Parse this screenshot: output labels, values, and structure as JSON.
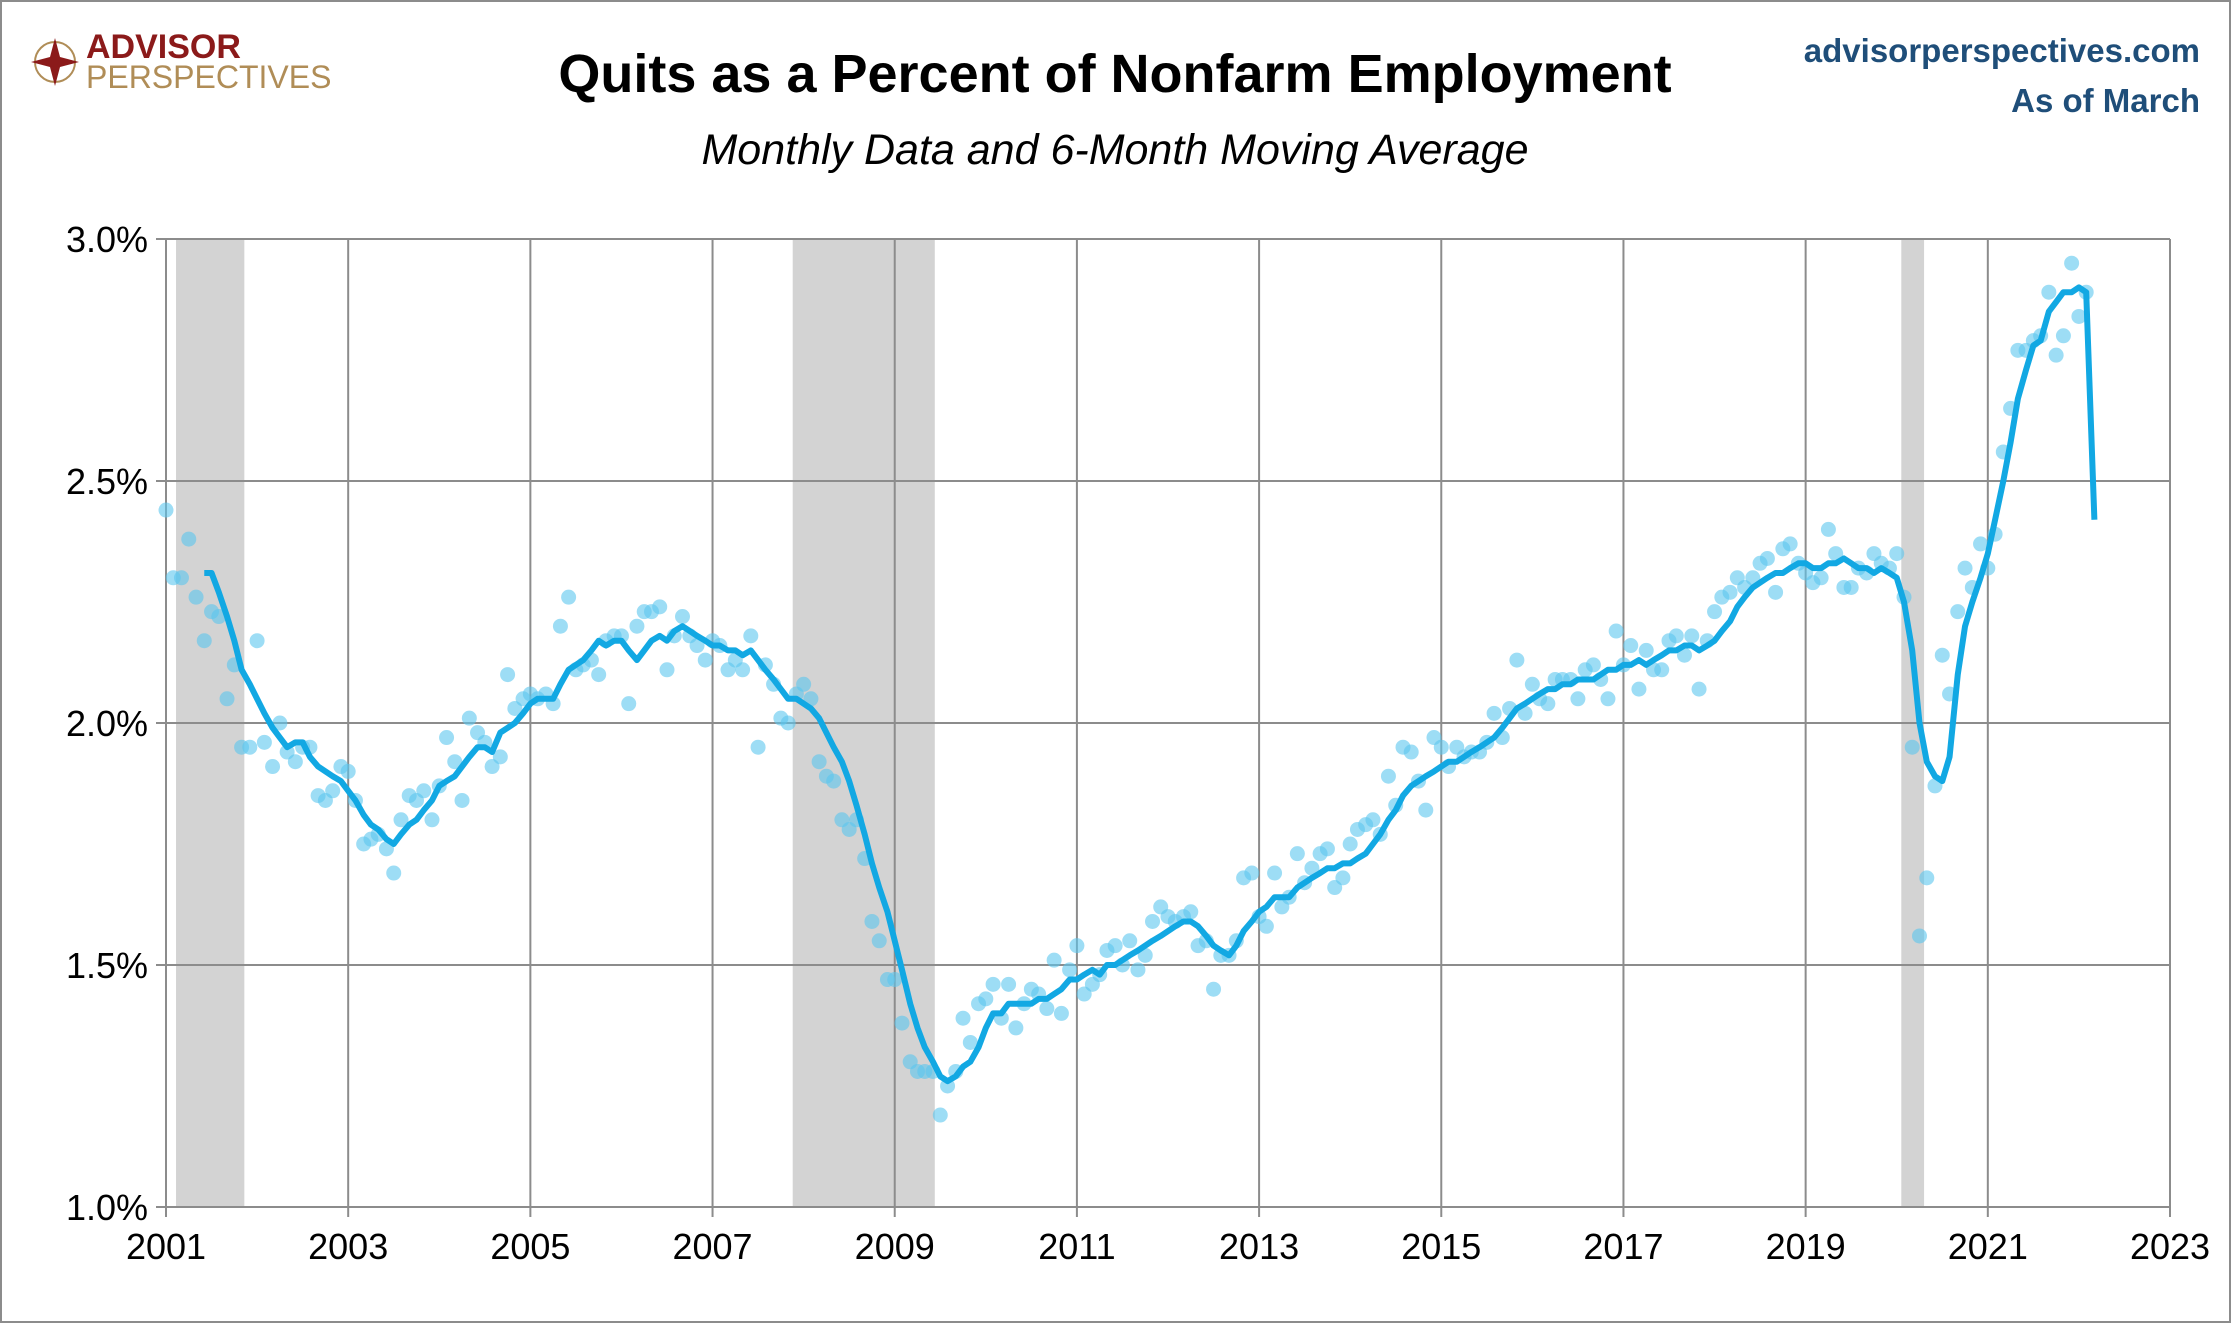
{
  "chart_data": {
    "type": "scatter-line",
    "title": "Quits as a Percent of Nonfarm Employment",
    "subtitle": "Monthly Data and 6-Month Moving Average",
    "logo": [
      "ADVISOR",
      "PERSPECTIVES"
    ],
    "source": "advisorperspectives.com",
    "as_of": "As of March",
    "xlim": [
      2001,
      2023
    ],
    "xticks": [
      2001,
      2003,
      2005,
      2007,
      2009,
      2011,
      2013,
      2015,
      2017,
      2019,
      2021,
      2023
    ],
    "ylim": [
      1.0,
      3.0
    ],
    "yticks": [
      {
        "value": 1.0,
        "label": "1.0%"
      },
      {
        "value": 1.5,
        "label": "1.5%"
      },
      {
        "value": 2.0,
        "label": "2.0%"
      },
      {
        "value": 2.5,
        "label": "2.5%"
      },
      {
        "value": 3.0,
        "label": "3.0%"
      }
    ],
    "grid": true,
    "shaded_periods": [
      [
        2001.11,
        2001.86
      ],
      [
        2007.88,
        2009.44
      ],
      [
        2020.05,
        2020.3
      ]
    ],
    "shade_color": "#d3d3d3",
    "x": [
      2001,
      2001.08,
      2001.17,
      2001.25,
      2001.33,
      2001.42,
      2001.5,
      2001.58,
      2001.67,
      2001.75,
      2001.83,
      2001.92,
      2002,
      2002.08,
      2002.17,
      2002.25,
      2002.33,
      2002.42,
      2002.5,
      2002.58,
      2002.67,
      2002.75,
      2002.83,
      2002.92,
      2003,
      2003.08,
      2003.17,
      2003.25,
      2003.33,
      2003.42,
      2003.5,
      2003.58,
      2003.67,
      2003.75,
      2003.83,
      2003.92,
      2004,
      2004.08,
      2004.17,
      2004.25,
      2004.33,
      2004.42,
      2004.5,
      2004.58,
      2004.67,
      2004.75,
      2004.83,
      2004.92,
      2005,
      2005.08,
      2005.17,
      2005.25,
      2005.33,
      2005.42,
      2005.5,
      2005.58,
      2005.67,
      2005.75,
      2005.83,
      2005.92,
      2006,
      2006.08,
      2006.17,
      2006.25,
      2006.33,
      2006.42,
      2006.5,
      2006.58,
      2006.67,
      2006.75,
      2006.83,
      2006.92,
      2007,
      2007.08,
      2007.17,
      2007.25,
      2007.33,
      2007.42,
      2007.5,
      2007.58,
      2007.67,
      2007.75,
      2007.83,
      2007.92,
      2008,
      2008.08,
      2008.17,
      2008.25,
      2008.33,
      2008.42,
      2008.5,
      2008.58,
      2008.67,
      2008.75,
      2008.83,
      2008.92,
      2009,
      2009.08,
      2009.17,
      2009.25,
      2009.33,
      2009.42,
      2009.5,
      2009.58,
      2009.67,
      2009.75,
      2009.83,
      2009.92,
      2010,
      2010.08,
      2010.17,
      2010.25,
      2010.33,
      2010.42,
      2010.5,
      2010.58,
      2010.67,
      2010.75,
      2010.83,
      2010.92,
      2011,
      2011.08,
      2011.17,
      2011.25,
      2011.33,
      2011.42,
      2011.5,
      2011.58,
      2011.67,
      2011.75,
      2011.83,
      2011.92,
      2012,
      2012.08,
      2012.17,
      2012.25,
      2012.33,
      2012.42,
      2012.5,
      2012.58,
      2012.67,
      2012.75,
      2012.83,
      2012.92,
      2013,
      2013.08,
      2013.17,
      2013.25,
      2013.33,
      2013.42,
      2013.5,
      2013.58,
      2013.67,
      2013.75,
      2013.83,
      2013.92,
      2014,
      2014.08,
      2014.17,
      2014.25,
      2014.33,
      2014.42,
      2014.5,
      2014.58,
      2014.67,
      2014.75,
      2014.83,
      2014.92,
      2015,
      2015.08,
      2015.17,
      2015.25,
      2015.33,
      2015.42,
      2015.5,
      2015.58,
      2015.67,
      2015.75,
      2015.83,
      2015.92,
      2016,
      2016.08,
      2016.17,
      2016.25,
      2016.33,
      2016.42,
      2016.5,
      2016.58,
      2016.67,
      2016.75,
      2016.83,
      2016.92,
      2017,
      2017.08,
      2017.17,
      2017.25,
      2017.33,
      2017.42,
      2017.5,
      2017.58,
      2017.67,
      2017.75,
      2017.83,
      2017.92,
      2018,
      2018.08,
      2018.17,
      2018.25,
      2018.33,
      2018.42,
      2018.5,
      2018.58,
      2018.67,
      2018.75,
      2018.83,
      2018.92,
      2019,
      2019.08,
      2019.17,
      2019.25,
      2019.33,
      2019.42,
      2019.5,
      2019.58,
      2019.67,
      2019.75,
      2019.83,
      2019.92,
      2020,
      2020.08,
      2020.17,
      2020.25,
      2020.33,
      2020.42,
      2020.5,
      2020.58,
      2020.67,
      2020.75,
      2020.83,
      2020.92,
      2021,
      2021.08,
      2021.17,
      2021.25,
      2021.33,
      2021.42,
      2021.5,
      2021.58,
      2021.67,
      2021.75,
      2021.83,
      2021.92,
      2022,
      2022.08,
      2022.17
    ],
    "series": [
      {
        "kind": "scatter",
        "color": "#5cc6ef",
        "values": [
          2.44,
          2.3,
          2.3,
          2.38,
          2.26,
          2.17,
          2.23,
          2.22,
          2.05,
          2.12,
          1.95,
          1.95,
          2.17,
          1.96,
          1.91,
          2.0,
          1.94,
          1.92,
          1.95,
          1.95,
          1.85,
          1.84,
          1.86,
          1.91,
          1.9,
          1.84,
          1.75,
          1.76,
          1.77,
          1.74,
          1.69,
          1.8,
          1.85,
          1.84,
          1.86,
          1.8,
          1.87,
          1.97,
          1.92,
          1.84,
          2.01,
          1.98,
          1.96,
          1.91,
          1.93,
          2.1,
          2.03,
          2.05,
          2.06,
          2.05,
          2.06,
          2.04,
          2.2,
          2.26,
          2.11,
          2.12,
          2.13,
          2.1,
          2.17,
          2.18,
          2.18,
          2.04,
          2.2,
          2.23,
          2.23,
          2.24,
          2.11,
          2.18,
          2.22,
          2.18,
          2.16,
          2.13,
          2.17,
          2.16,
          2.11,
          2.13,
          2.11,
          2.18,
          1.95,
          2.12,
          2.08,
          2.01,
          2.0,
          2.06,
          2.08,
          2.05,
          1.92,
          1.89,
          1.88,
          1.8,
          1.78,
          1.8,
          1.72,
          1.59,
          1.55,
          1.47,
          1.47,
          1.38,
          1.3,
          1.28,
          1.28,
          1.28,
          1.19,
          1.25,
          1.28,
          1.39,
          1.34,
          1.42,
          1.43,
          1.46,
          1.39,
          1.46,
          1.37,
          1.42,
          1.45,
          1.44,
          1.41,
          1.51,
          1.4,
          1.49,
          1.54,
          1.44,
          1.46,
          1.48,
          1.53,
          1.54,
          1.5,
          1.55,
          1.49,
          1.52,
          1.59,
          1.62,
          1.6,
          1.59,
          1.6,
          1.61,
          1.54,
          1.55,
          1.45,
          1.52,
          1.52,
          1.55,
          1.68,
          1.69,
          1.6,
          1.58,
          1.69,
          1.62,
          1.64,
          1.73,
          1.67,
          1.7,
          1.73,
          1.74,
          1.66,
          1.68,
          1.75,
          1.78,
          1.79,
          1.8,
          1.77,
          1.89,
          1.83,
          1.95,
          1.94,
          1.88,
          1.82,
          1.97,
          1.95,
          1.91,
          1.95,
          1.93,
          1.94,
          1.94,
          1.96,
          2.02,
          1.97,
          2.03,
          2.13,
          2.02,
          2.08,
          2.05,
          2.04,
          2.09,
          2.09,
          2.09,
          2.05,
          2.11,
          2.12,
          2.09,
          2.05,
          2.19,
          2.12,
          2.16,
          2.07,
          2.15,
          2.11,
          2.11,
          2.17,
          2.18,
          2.14,
          2.18,
          2.07,
          2.17,
          2.23,
          2.26,
          2.27,
          2.3,
          2.28,
          2.3,
          2.33,
          2.34,
          2.27,
          2.36,
          2.37,
          2.33,
          2.31,
          2.29,
          2.3,
          2.4,
          2.35,
          2.28,
          2.28,
          2.32,
          2.31,
          2.35,
          2.33,
          2.32,
          2.35,
          2.26,
          1.95,
          1.56,
          1.68,
          1.87,
          2.14,
          2.06,
          2.23,
          2.32,
          2.28,
          2.37,
          2.32,
          2.39,
          2.56,
          2.65,
          2.77,
          2.77,
          2.79,
          2.8,
          2.89,
          2.76,
          2.8,
          2.95,
          2.84,
          2.89,
          null
        ]
      },
      {
        "kind": "line",
        "color": "#12a8e3",
        "values": [
          null,
          null,
          null,
          null,
          null,
          2.31,
          2.31,
          2.27,
          2.22,
          2.17,
          2.11,
          2.08,
          2.05,
          2.02,
          1.99,
          1.97,
          1.95,
          1.96,
          1.96,
          1.93,
          1.91,
          1.9,
          1.89,
          1.88,
          1.86,
          1.84,
          1.81,
          1.79,
          1.78,
          1.76,
          1.75,
          1.77,
          1.79,
          1.8,
          1.82,
          1.84,
          1.87,
          1.88,
          1.89,
          1.91,
          1.93,
          1.95,
          1.95,
          1.94,
          1.98,
          1.99,
          2.0,
          2.02,
          2.04,
          2.05,
          2.05,
          2.05,
          2.08,
          2.11,
          2.12,
          2.13,
          2.15,
          2.17,
          2.16,
          2.17,
          2.17,
          2.15,
          2.13,
          2.15,
          2.17,
          2.18,
          2.17,
          2.19,
          2.2,
          2.19,
          2.18,
          2.17,
          2.16,
          2.16,
          2.15,
          2.15,
          2.14,
          2.15,
          2.13,
          2.11,
          2.09,
          2.07,
          2.05,
          2.05,
          2.04,
          2.03,
          2.01,
          1.98,
          1.95,
          1.92,
          1.88,
          1.83,
          1.77,
          1.71,
          1.66,
          1.61,
          1.55,
          1.49,
          1.42,
          1.37,
          1.33,
          1.3,
          1.27,
          1.26,
          1.27,
          1.29,
          1.3,
          1.33,
          1.37,
          1.4,
          1.4,
          1.42,
          1.42,
          1.42,
          1.42,
          1.43,
          1.43,
          1.44,
          1.45,
          1.47,
          1.47,
          1.48,
          1.49,
          1.48,
          1.5,
          1.5,
          1.51,
          1.52,
          1.53,
          1.54,
          1.55,
          1.56,
          1.57,
          1.58,
          1.59,
          1.59,
          1.58,
          1.56,
          1.54,
          1.53,
          1.52,
          1.54,
          1.57,
          1.59,
          1.61,
          1.62,
          1.64,
          1.64,
          1.64,
          1.66,
          1.67,
          1.68,
          1.69,
          1.7,
          1.7,
          1.71,
          1.71,
          1.72,
          1.73,
          1.75,
          1.77,
          1.8,
          1.82,
          1.85,
          1.87,
          1.88,
          1.89,
          1.9,
          1.91,
          1.92,
          1.92,
          1.93,
          1.94,
          1.95,
          1.96,
          1.97,
          1.99,
          2.01,
          2.03,
          2.04,
          2.05,
          2.06,
          2.07,
          2.07,
          2.08,
          2.08,
          2.09,
          2.09,
          2.09,
          2.1,
          2.11,
          2.11,
          2.12,
          2.12,
          2.13,
          2.12,
          2.13,
          2.14,
          2.15,
          2.15,
          2.16,
          2.16,
          2.15,
          2.16,
          2.17,
          2.19,
          2.21,
          2.24,
          2.26,
          2.28,
          2.29,
          2.3,
          2.31,
          2.31,
          2.32,
          2.33,
          2.33,
          2.32,
          2.32,
          2.33,
          2.33,
          2.34,
          2.33,
          2.32,
          2.32,
          2.31,
          2.32,
          2.31,
          2.3,
          2.25,
          2.15,
          2.0,
          1.92,
          1.89,
          1.88,
          1.93,
          2.1,
          2.2,
          2.25,
          2.3,
          2.35,
          2.42,
          2.5,
          2.58,
          2.67,
          2.73,
          2.78,
          2.79,
          2.85,
          2.87,
          2.89,
          2.89,
          2.9,
          2.89,
          2.42
        ]
      }
    ]
  }
}
